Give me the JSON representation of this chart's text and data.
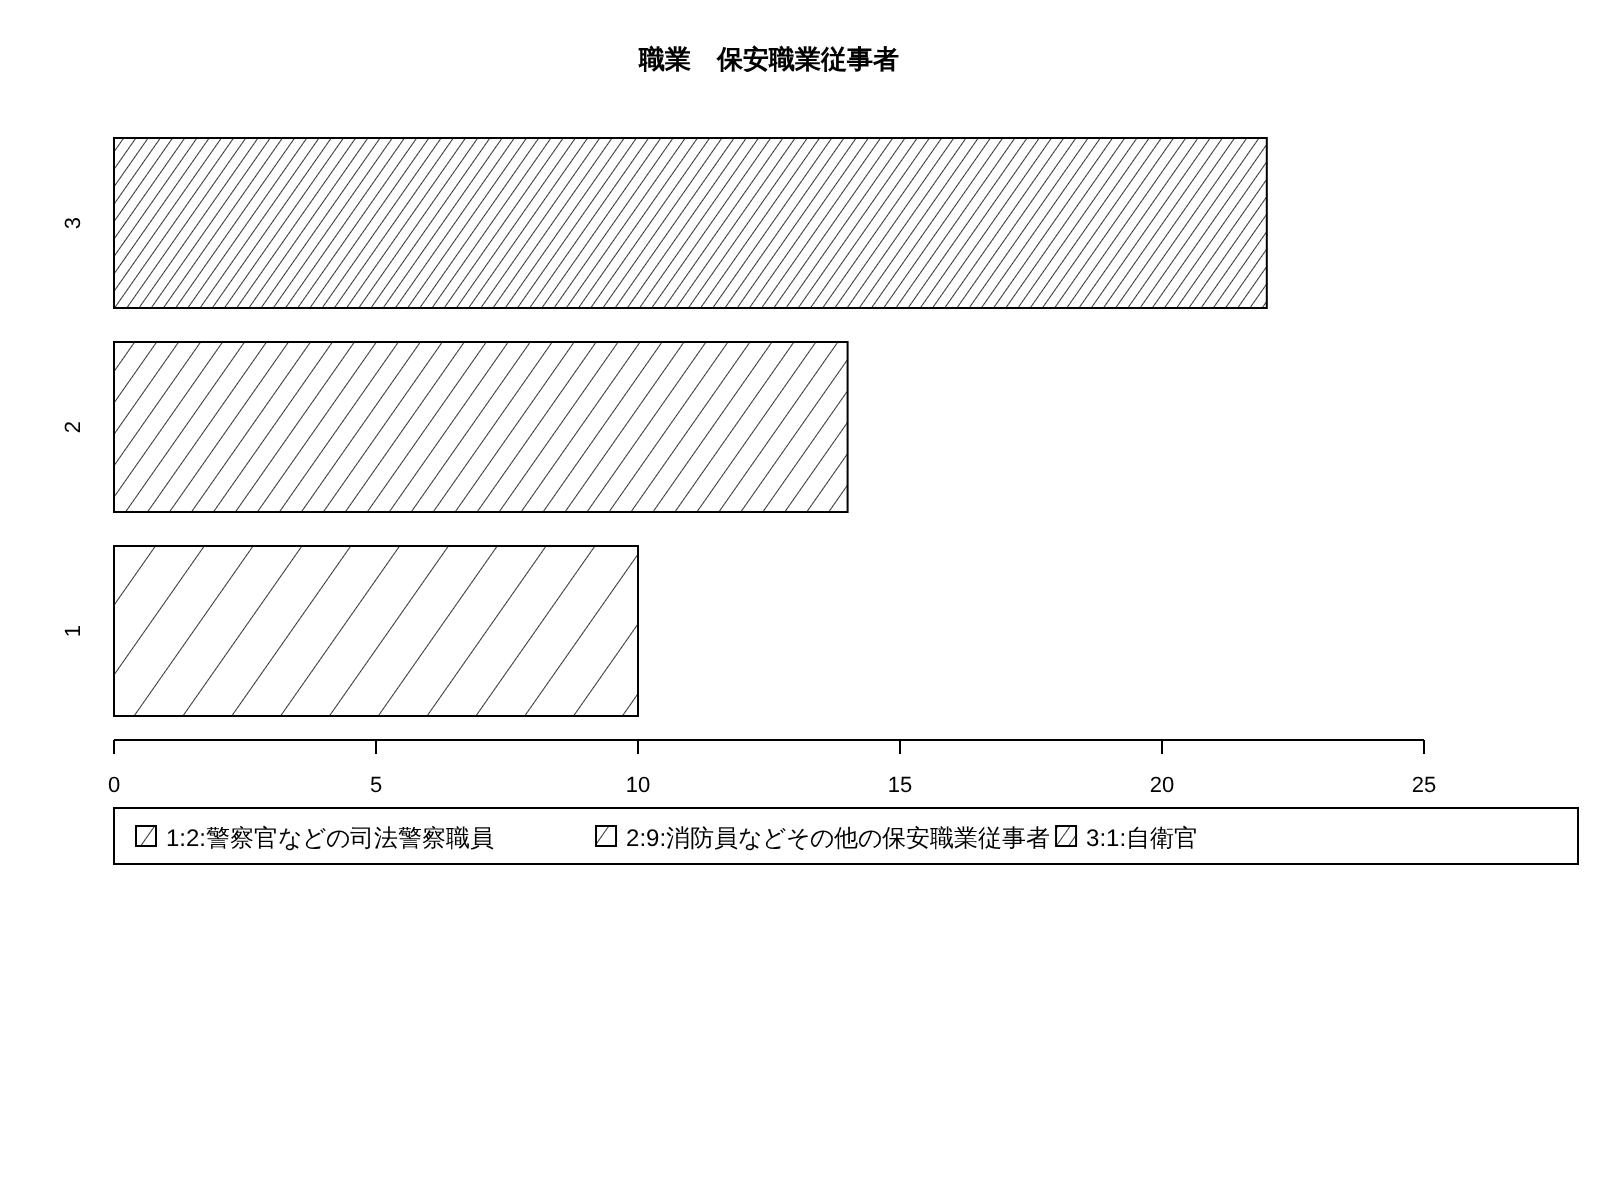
{
  "chart_data": {
    "type": "bar",
    "orientation": "horizontal",
    "stacked": true,
    "title": "職業　保安職業従事者",
    "categories": [
      "3",
      "2",
      "1"
    ],
    "series": [
      {
        "name": "1:2:警察官などの司法警察職員",
        "color": "#000000",
        "values": [
          null,
          null,
          10
        ]
      },
      {
        "name": "2:9:消防員などその他の保安職業従事者",
        "color": "#000000",
        "values": [
          null,
          14,
          null
        ]
      },
      {
        "name": "3:1:自衛官",
        "color": "#000000",
        "values": [
          22,
          null,
          null
        ]
      }
    ],
    "xlim": [
      0,
      25
    ],
    "xticks": [
      0,
      5,
      10,
      15,
      20,
      25
    ],
    "legend": "bottom"
  }
}
